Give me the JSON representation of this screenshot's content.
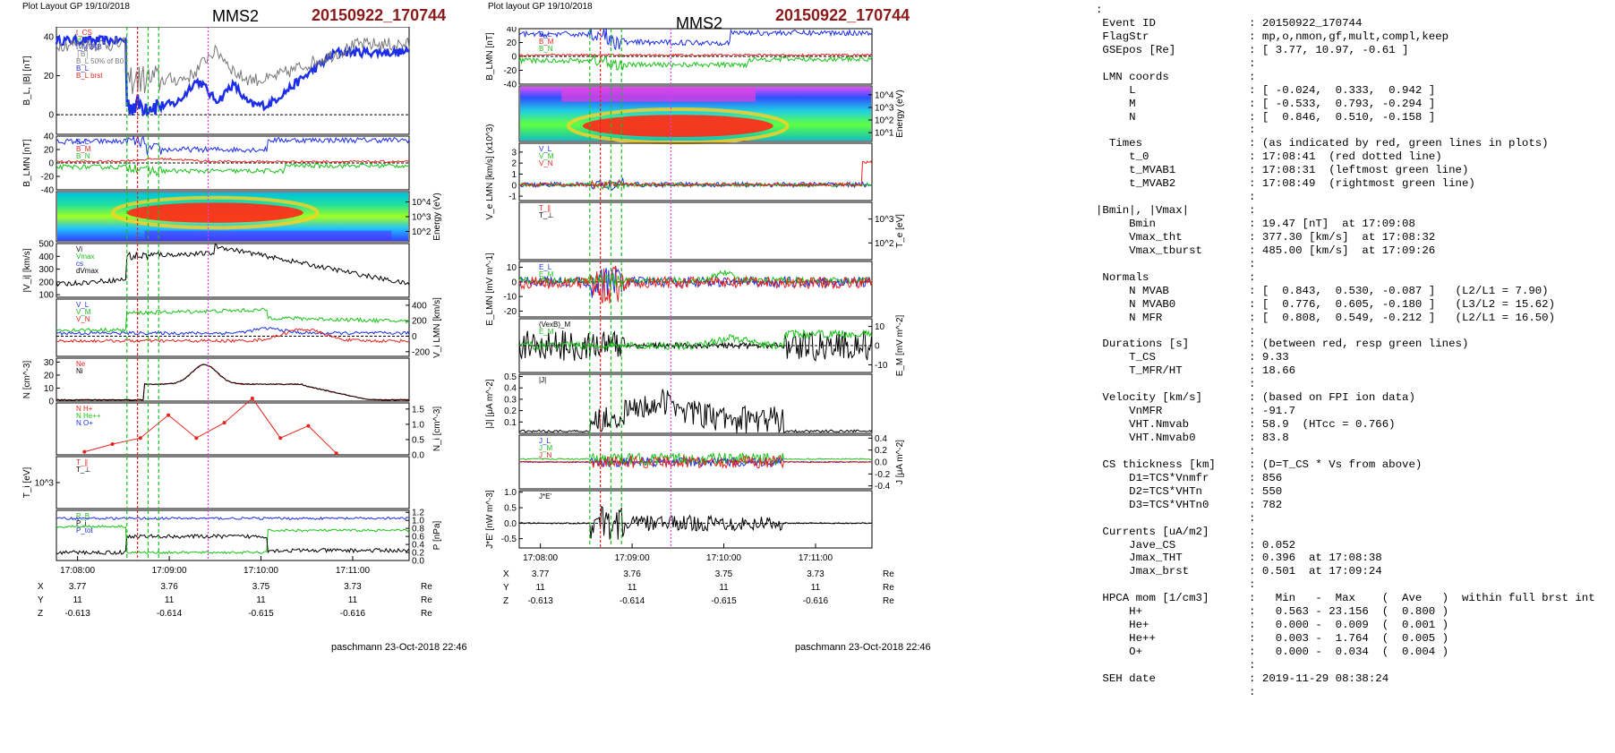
{
  "left_figure": {
    "layout_label": "Plot Layout GP 19/10/2018",
    "title": "MMS2",
    "event": "20150922_170744",
    "footer": "paschmann 23-Oct-2018 22:46",
    "time_ticks": [
      "17:08:00",
      "17:09:00",
      "17:10:00",
      "17:11:00"
    ],
    "coords": [
      {
        "label": "X",
        "values": [
          "3.77",
          "3.76",
          "3.75",
          "3.73"
        ],
        "unit": "Re"
      },
      {
        "label": "Y",
        "values": [
          "11",
          "11",
          "11",
          "11"
        ],
        "unit": "Re"
      },
      {
        "label": "Z",
        "values": [
          "-0.613",
          "-0.614",
          "-0.615",
          "-0.616"
        ],
        "unit": "Re"
      }
    ]
  },
  "middle_figure": {
    "layout_label": "Plot layout GP 19/10/2018",
    "title": "MMS2",
    "event": "20150922_170744",
    "footer": "paschmann 23-Oct-2018 22:46",
    "time_ticks": [
      "17:08:00",
      "17:09:00",
      "17:10:00",
      "17:11:00"
    ],
    "coords": [
      {
        "label": "X",
        "values": [
          "3.77",
          "3.76",
          "3.75",
          "3.73"
        ],
        "unit": "Re"
      },
      {
        "label": "Y",
        "values": [
          "11",
          "11",
          "11",
          "11"
        ],
        "unit": "Re"
      },
      {
        "label": "Z",
        "values": [
          "-0.613",
          "-0.614",
          "-0.615",
          "-0.616"
        ],
        "unit": "Re"
      }
    ]
  },
  "colors": {
    "red": "#e8231c",
    "green": "#19c219",
    "blue": "#1c2ee8",
    "black": "#000000",
    "gray": "#777777",
    "magenta": "#e040e0",
    "event_red": "#8b1a1a"
  },
  "summary_lines": [
    ":",
    " Event ID              : 20150922_170744",
    " FlagStr               : mp,o,nmon,gf,mult,compl,keep",
    " GSEpos [Re]           : [ 3.77, 10.97, -0.61 ]",
    "                       :",
    " LMN coords            :",
    "     L                 : [ -0.024,  0.333,  0.942 ]",
    "     M                 : [ -0.533,  0.793, -0.294 ]",
    "     N                 : [  0.846,  0.510, -0.158 ]",
    "                       :",
    "  Times                : (as indicated by red, green lines in plots)",
    "     t_0               : 17:08:41  (red dotted line)",
    "     t_MVAB1           : 17:08:31  (leftmost green line)",
    "     t_MVAB2           : 17:08:49  (rightmost green line)",
    "                       :",
    "|Bmin|, |Vmax|         :",
    "     Bmin              : 19.47 [nT]  at 17:09:08",
    "     Vmax_tht          : 377.30 [km/s]  at 17:08:32",
    "     Vmax_tburst       : 485.00 [km/s]  at 17:09:26",
    "                       :",
    " Normals               :",
    "     N MVAB            : [  0.843,  0.530, -0.087 ]   (L2/L1 = 7.90)",
    "     N MVAB0           : [  0.776,  0.605, -0.180 ]   (L3/L2 = 15.62)",
    "     N MFR             : [  0.808,  0.549, -0.212 ]   (L2/L1 = 16.50)",
    "                       :",
    " Durations [s]         : (between red, resp green lines)",
    "     T_CS              : 9.33",
    "     T_MFR/HT          : 18.66",
    "                       :",
    " Velocity [km/s]       : (based on FPI ion data)",
    "     VnMFR             : -91.7",
    "     VHT.Nmvab         : 58.9  (HTcc = 0.766)",
    "     VHT.Nmvab0        : 83.8",
    "                       :",
    " CS thickness [km]     : (D=T_CS * Vs from above)",
    "     D1=TCS*Vnmfr      : 856",
    "     D2=TCS*VHTn       : 550",
    "     D3=TCS*VHTn0      : 782",
    "                       :",
    " Currents [uA/m2]      :",
    "     Jave_CS           : 0.052",
    "     Jmax_THT          : 0.396  at 17:08:38",
    "     Jmax_brst         : 0.501  at 17:09:24",
    "                       :",
    " HPCA mom [1/cm3]      :   Min   -  Max    (  Ave   )  within full brst int",
    "     H+                :   0.563 - 23.156  (  0.800 )",
    "     He+               :   0.000 -  0.009  (  0.001 )",
    "     He++              :   0.003 -  1.764  (  0.005 )",
    "     O+                :   0.000 -  0.034  (  0.004 )",
    "                       :",
    " SEH date              : 2019-11-29 08:38:24",
    "                       :"
  ],
  "chart_data": [
    {
      "type": "line",
      "figure": "left",
      "panels": [
        {
          "id": "B",
          "ylabel": "B_L, |B| [nT]",
          "y_ticks": [
            "40",
            "20",
            "0"
          ],
          "ylim": [
            -10,
            45
          ],
          "legend": [
            "t_CS",
            "HT",
            "t_MVAB",
            "│B│",
            "B_L 50% of B0",
            "B_L",
            "B_L brst"
          ],
          "series": [
            {
              "name": "B_L",
              "color": "blue"
            },
            {
              "name": "│B│",
              "color": "gray"
            }
          ]
        },
        {
          "id": "BLMN",
          "ylabel": "B_LMN [nT]",
          "y_ticks": [
            "40",
            "20",
            "0",
            "-20",
            "-40"
          ],
          "ylim": [
            -40,
            40
          ],
          "legend": [
            "B_L",
            "B_M",
            "B_N"
          ],
          "series": [
            {
              "name": "B_L",
              "color": "blue"
            },
            {
              "name": "B_M",
              "color": "red"
            },
            {
              "name": "B_N",
              "color": "green"
            }
          ]
        },
        {
          "id": "Espec",
          "ylabel": "Energy (eV)",
          "y_ticks": [
            "10^4",
            "10^3",
            "10^2"
          ],
          "type": "heatmap"
        },
        {
          "id": "Vi",
          "ylabel": "|V_i| [km/s]",
          "y_ticks": [
            "500",
            "400",
            "300",
            "200",
            "100"
          ],
          "ylim": [
            80,
            500
          ],
          "legend": [
            "Vi",
            "Vmax",
            "cs",
            "dVmax"
          ],
          "series": [
            {
              "name": "Vi",
              "color": "black"
            }
          ]
        },
        {
          "id": "ViLMN",
          "ylabel": "V_i LMN [km/s]",
          "y_ticks": [
            "400",
            "200",
            "0",
            "-200"
          ],
          "ylim": [
            -260,
            480
          ],
          "legend": [
            "V_L",
            "V_M",
            "V_N"
          ],
          "series": [
            {
              "name": "V_L",
              "color": "blue"
            },
            {
              "name": "V_M",
              "color": "green"
            },
            {
              "name": "V_N",
              "color": "red"
            }
          ]
        },
        {
          "id": "N",
          "ylabel": "N [cm^-3]",
          "y_ticks": [
            "30",
            "20",
            "10",
            "0"
          ],
          "ylim": [
            0,
            33
          ],
          "legend": [
            "Ne",
            "Ni"
          ],
          "series": [
            {
              "name": "Ne",
              "color": "red"
            },
            {
              "name": "Ni",
              "color": "black"
            }
          ]
        },
        {
          "id": "Nion",
          "ylabel": "N_i [cm^-3]",
          "y_ticks": [
            "1.5",
            "1.0",
            "0.5",
            "0.0"
          ],
          "ylim": [
            0,
            1.7
          ],
          "legend": [
            "N  H+",
            "N  He++",
            "N  O+"
          ],
          "series": [
            {
              "name": "N He++",
              "color": "red",
              "x_min": [
                0.5,
                1.0,
                1.5,
                2.0,
                2.5,
                3.0,
                3.5,
                4.0,
                4.5,
                5.0
              ],
              "values": [
                0.1,
                0.35,
                0.55,
                1.3,
                0.55,
                1.05,
                1.85,
                0.55,
                0.95,
                0.05
              ]
            }
          ]
        },
        {
          "id": "Ti",
          "ylabel": "T_i [eV]",
          "y_ticks": [
            "10^3"
          ],
          "legend": [
            "T_∥",
            "T_⊥"
          ],
          "series": [
            {
              "name": "T_∥",
              "color": "red"
            },
            {
              "name": "T_⊥",
              "color": "black"
            }
          ]
        },
        {
          "id": "P",
          "ylabel": "P [nPa]",
          "y_ticks": [
            "1.2",
            "1.0",
            "0.8",
            "0.6",
            "0.4",
            "0.2",
            "0.0"
          ],
          "ylim": [
            0,
            1.25
          ],
          "legend": [
            "P_B",
            "P_i",
            "P_tot"
          ],
          "series": [
            {
              "name": "P_B",
              "color": "green"
            },
            {
              "name": "P_i",
              "color": "black"
            },
            {
              "name": "P_tot",
              "color": "blue"
            }
          ]
        }
      ]
    },
    {
      "type": "line",
      "figure": "middle",
      "panels": [
        {
          "id": "BLMN",
          "ylabel": "B_LMN [nT]",
          "y_ticks": [
            "40",
            "20",
            "0",
            "-20",
            "-40"
          ],
          "ylim": [
            -40,
            40
          ],
          "legend": [
            "B_L",
            "B_M",
            "B_N"
          ],
          "series": [
            {
              "name": "B_L",
              "color": "blue"
            },
            {
              "name": "B_M",
              "color": "red"
            },
            {
              "name": "B_N",
              "color": "green"
            }
          ]
        },
        {
          "id": "Espec",
          "ylabel": "Energy (eV)",
          "y_ticks": [
            "10^4",
            "10^3",
            "10^2",
            "10^1"
          ],
          "type": "heatmap"
        },
        {
          "id": "Ve",
          "ylabel": "V_e LMN [km/s] (x10^3)",
          "y_ticks": [
            "3",
            "2",
            "1",
            "0",
            "-1"
          ],
          "ylim": [
            -1.4,
            3.8
          ],
          "legend": [
            "V_L",
            "V_M",
            "V_N"
          ],
          "series": [
            {
              "name": "V_L",
              "color": "blue"
            },
            {
              "name": "V_M",
              "color": "green"
            },
            {
              "name": "V_N",
              "color": "red"
            }
          ]
        },
        {
          "id": "Te",
          "ylabel": "T_e [eV]",
          "y_ticks": [
            "10^3",
            "10^2"
          ],
          "legend": [
            "T_∥",
            "T_⊥"
          ],
          "series": [
            {
              "name": "T_∥",
              "color": "red"
            },
            {
              "name": "T_⊥",
              "color": "black"
            }
          ]
        },
        {
          "id": "E",
          "ylabel": "E_LMN [mV m^-1]",
          "y_ticks": [
            "10",
            "0",
            "-10",
            "-20"
          ],
          "ylim": [
            -24,
            14
          ],
          "legend": [
            "E_L",
            "E_M",
            "E_N"
          ],
          "series": [
            {
              "name": "E_L",
              "color": "blue"
            },
            {
              "name": "E_M",
              "color": "green"
            },
            {
              "name": "E_N",
              "color": "red"
            }
          ]
        },
        {
          "id": "EM",
          "ylabel": "E_M [mV m^-2]",
          "y_ticks": [
            "10",
            "0",
            "-10"
          ],
          "ylim": [
            -14,
            14
          ],
          "legend": [
            "(VexB)_M",
            "E_M"
          ],
          "series": [
            {
              "name": "(VexB)_M",
              "color": "black"
            },
            {
              "name": "E_M",
              "color": "green"
            }
          ]
        },
        {
          "id": "J",
          "ylabel": "|J| [μA m^-2]",
          "y_ticks": [
            "0.5",
            "0.4",
            "0.3",
            "0.2",
            "0.1"
          ],
          "ylim": [
            0,
            0.52
          ],
          "legend": [
            "|J|"
          ],
          "series": [
            {
              "name": "|J|",
              "color": "black"
            }
          ]
        },
        {
          "id": "JLMN",
          "ylabel": "J [μA m^-2]",
          "y_ticks": [
            "0.4",
            "0.2",
            "0.0",
            "-0.2",
            "-0.4"
          ],
          "ylim": [
            -0.45,
            0.45
          ],
          "legend": [
            "J_L",
            "J_M",
            "J_N"
          ],
          "series": [
            {
              "name": "J_L",
              "color": "blue"
            },
            {
              "name": "J_M",
              "color": "green"
            },
            {
              "name": "J_N",
              "color": "red"
            }
          ]
        },
        {
          "id": "JE",
          "ylabel": "J*E' [nW m^-3]",
          "y_ticks": [
            "1.0",
            "0.5",
            "0.0",
            "-0.5"
          ],
          "ylim": [
            -0.8,
            1.05
          ],
          "legend": [
            "J*E'"
          ],
          "series": [
            {
              "name": "J*E'",
              "color": "black"
            }
          ]
        }
      ]
    }
  ]
}
